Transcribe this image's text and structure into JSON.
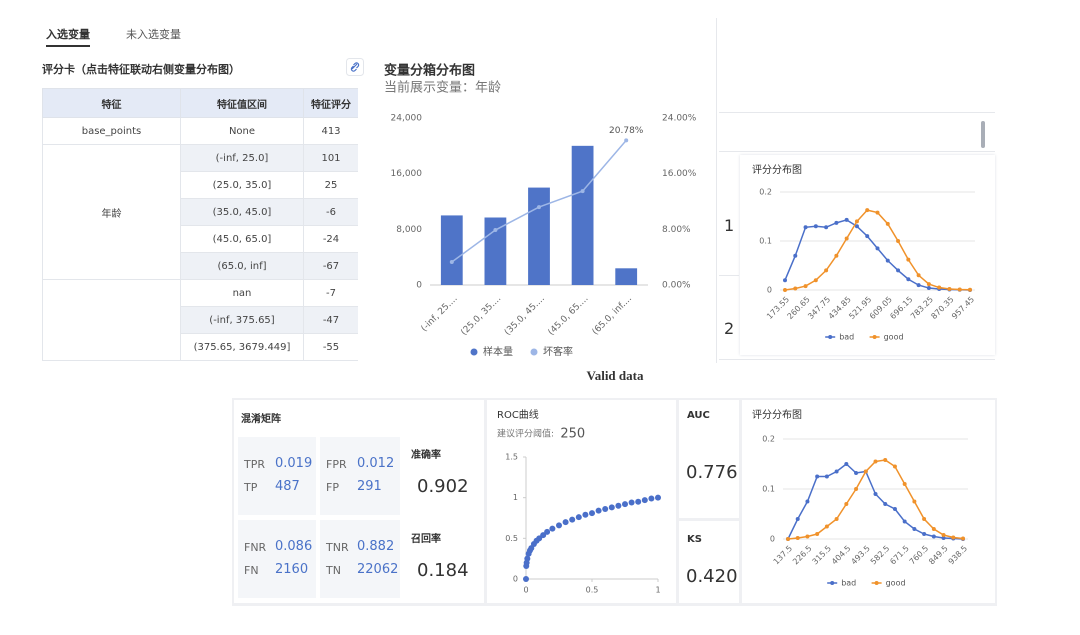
{
  "tabs": [
    "入选变量",
    "未入选变量"
  ],
  "scorecard": {
    "title": "评分卡（点击特征联动右侧变量分布图）",
    "headers": [
      "特征",
      "特征值区间",
      "特征评分"
    ],
    "groups": [
      {
        "feature": "base_points",
        "bins": [
          {
            "interval": "None",
            "score": 413
          }
        ]
      },
      {
        "feature": "年龄",
        "bins": [
          {
            "interval": "(-inf, 25.0]",
            "score": 101
          },
          {
            "interval": "(25.0, 35.0]",
            "score": 25
          },
          {
            "interval": "(35.0, 45.0]",
            "score": -6
          },
          {
            "interval": "(45.0, 65.0]",
            "score": -24
          },
          {
            "interval": "(65.0, inf]",
            "score": -67
          }
        ]
      },
      {
        "bins": [
          {
            "interval": "nan",
            "score": -7
          },
          {
            "interval": "(-inf, 375.65]",
            "score": -47
          },
          {
            "interval": "(375.65, 3679.449]",
            "score": -55
          }
        ]
      }
    ]
  },
  "row_numbers": [
    1,
    2
  ],
  "section_title": "Valid data",
  "confusion": {
    "title": "混淆矩阵",
    "cells": [
      {
        "rate_label": "TPR",
        "rate": 0.019,
        "count_label": "TP",
        "count": 487
      },
      {
        "rate_label": "FPR",
        "rate": 0.012,
        "count_label": "FP",
        "count": 291
      },
      {
        "rate_label": "FNR",
        "rate": 0.086,
        "count_label": "FN",
        "count": 2160
      },
      {
        "rate_label": "TNR",
        "rate": 0.882,
        "count_label": "TN",
        "count": 22062
      }
    ],
    "metrics": [
      {
        "label": "准确率",
        "value": 0.902
      },
      {
        "label": "召回率",
        "value": 0.184
      }
    ]
  },
  "kpis": [
    {
      "label": "AUC",
      "value": 0.776
    },
    {
      "label": "KS",
      "value": "0.420"
    }
  ],
  "chart_data": [
    {
      "type": "bar",
      "title": "变量分箱分布图",
      "subtitle": "当前展示变量：年龄",
      "categories": [
        "(-inf, 25....",
        "(25.0, 35....",
        "(35.0, 45....",
        "(45.0, 65....",
        "(65.0, inf...."
      ],
      "series": [
        {
          "name": "样本量",
          "color": "#4f74c8",
          "values": [
            10000,
            9700,
            14000,
            20000,
            2400
          ]
        },
        {
          "name": "坏客率",
          "type": "line",
          "axis": "y2",
          "color": "#9db6e6",
          "values": [
            3.3,
            7.9,
            11.2,
            13.5,
            20.78
          ],
          "value_labels": [
            null,
            null,
            null,
            null,
            "20.78%"
          ]
        }
      ],
      "ylim": [
        0,
        24000
      ],
      "yticks": [
        0,
        {
          "value": 8000,
          "label": "8,000"
        },
        {
          "value": 16000,
          "label": "16,000"
        },
        {
          "value": 24000,
          "label": "24,000"
        }
      ],
      "y2lim": [
        0,
        24
      ],
      "y2ticks": [
        {
          "value": 0,
          "label": "0.00%"
        },
        {
          "value": 8,
          "label": "8.00%"
        },
        {
          "value": 16,
          "label": "16.00%"
        },
        {
          "value": 24,
          "label": "24.00%"
        }
      ],
      "grid": false,
      "legend": "bottom"
    },
    {
      "type": "line",
      "title": "评分分布图",
      "categories": [
        "173.55",
        null,
        "260.65",
        null,
        "347.75",
        null,
        "434.85",
        null,
        "521.95",
        null,
        "609.05",
        null,
        "696.15",
        null,
        "783.25",
        null,
        "870.35",
        null,
        "957.45"
      ],
      "series": [
        {
          "name": "bad",
          "color": "#4a6fc9",
          "values": [
            0.02,
            0.07,
            0.128,
            0.13,
            0.128,
            0.137,
            0.143,
            0.13,
            0.11,
            0.085,
            0.06,
            0.04,
            0.022,
            0.01,
            0.004,
            0.002,
            0.001,
            0.0005,
            0
          ]
        },
        {
          "name": "good",
          "color": "#f0922b",
          "values": [
            0,
            0.003,
            0.008,
            0.02,
            0.04,
            0.07,
            0.105,
            0.14,
            0.163,
            0.158,
            0.135,
            0.1,
            0.062,
            0.03,
            0.012,
            0.005,
            0.002,
            0.001,
            0.0005
          ]
        }
      ],
      "ylim": [
        0,
        0.2
      ],
      "yticks": [
        0,
        0.1,
        0.2
      ],
      "grid": true,
      "legend": "bottom"
    },
    {
      "type": "scatter",
      "title": "ROC曲线",
      "subtitle": "建议评分阈值:",
      "threshold": 250,
      "x": [
        0,
        0.002,
        0.005,
        0.01,
        0.02,
        0.03,
        0.04,
        0.06,
        0.08,
        0.1,
        0.13,
        0.16,
        0.2,
        0.25,
        0.3,
        0.35,
        0.4,
        0.45,
        0.5,
        0.55,
        0.6,
        0.65,
        0.7,
        0.75,
        0.8,
        0.85,
        0.9,
        0.95,
        1
      ],
      "series": [
        {
          "color": "#4a6fc9",
          "values": [
            0,
            0.16,
            0.2,
            0.25,
            0.31,
            0.35,
            0.38,
            0.43,
            0.47,
            0.5,
            0.54,
            0.58,
            0.62,
            0.66,
            0.7,
            0.73,
            0.76,
            0.79,
            0.81,
            0.84,
            0.86,
            0.88,
            0.9,
            0.92,
            0.94,
            0.95,
            0.97,
            0.99,
            1
          ]
        }
      ],
      "xlim": [
        0,
        1
      ],
      "xticks": [
        0,
        0.5,
        1
      ],
      "ylim": [
        0,
        1.5
      ],
      "yticks": [
        0,
        0.5,
        1,
        1.5
      ],
      "grid": false
    },
    {
      "type": "line",
      "title": "评分分布图",
      "categories": [
        "137.5",
        null,
        "226.5",
        null,
        "315.5",
        null,
        "404.5",
        null,
        "493.5",
        null,
        "582.5",
        null,
        "671.5",
        null,
        "760.5",
        null,
        "849.5",
        null,
        "938.5"
      ],
      "series": [
        {
          "name": "bad",
          "color": "#4a6fc9",
          "values": [
            0,
            0.04,
            0.075,
            0.125,
            0.125,
            0.135,
            0.15,
            0.132,
            0.135,
            0.09,
            0.07,
            0.06,
            0.035,
            0.02,
            0.01,
            0.005,
            0.002,
            0.001,
            0
          ]
        },
        {
          "name": "good",
          "color": "#f0922b",
          "values": [
            0,
            0.002,
            0.005,
            0.01,
            0.025,
            0.04,
            0.07,
            0.1,
            0.135,
            0.155,
            0.158,
            0.145,
            0.11,
            0.075,
            0.04,
            0.02,
            0.008,
            0.003,
            0.001
          ]
        }
      ],
      "ylim": [
        0,
        0.2
      ],
      "yticks": [
        0,
        0.1,
        0.2
      ],
      "grid": true,
      "legend": "bottom"
    }
  ]
}
